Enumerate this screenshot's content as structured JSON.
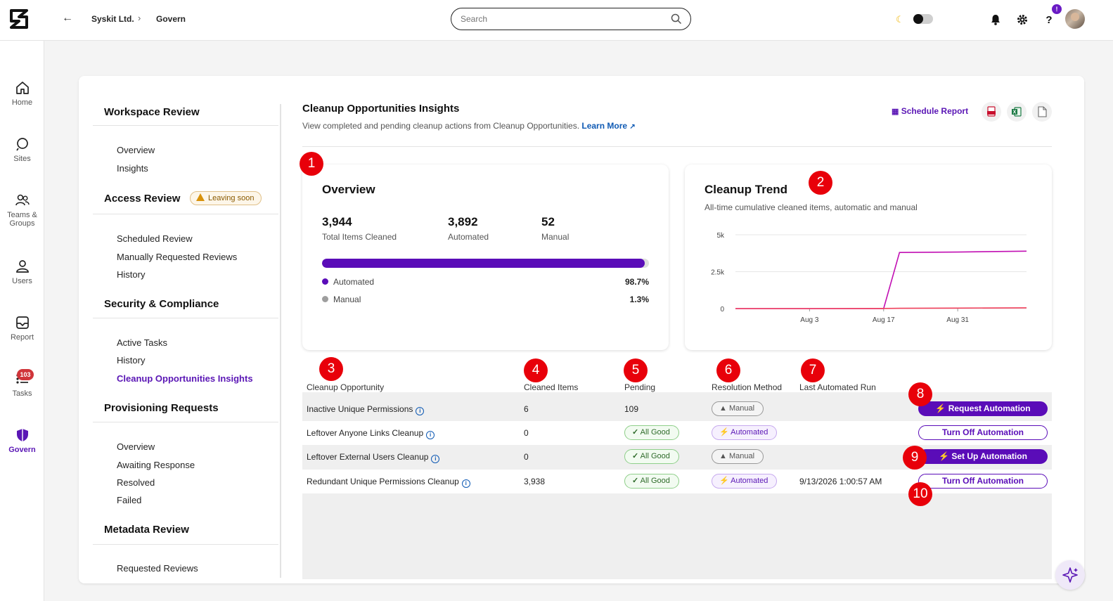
{
  "breadcrumb": {
    "org": "Syskit Ltd.",
    "current": "Govern"
  },
  "search": {
    "placeholder": "Search"
  },
  "help_badge": "!",
  "leftnav": [
    {
      "label": "Home",
      "icon": "home-icon"
    },
    {
      "label": "Sites",
      "icon": "sites-icon"
    },
    {
      "label": "Teams & Groups",
      "icon": "teams-icon"
    },
    {
      "label": "Users",
      "icon": "users-icon"
    },
    {
      "label": "Report",
      "icon": "report-icon"
    },
    {
      "label": "Tasks",
      "icon": "tasks-icon",
      "badge": "103"
    },
    {
      "label": "Govern",
      "icon": "shield-icon",
      "active": true
    }
  ],
  "subnav": {
    "workspace_review": {
      "title": "Workspace Review",
      "items": [
        "Overview",
        "Insights"
      ]
    },
    "access_review": {
      "title": "Access Review",
      "badge": "Leaving soon",
      "items": [
        "Scheduled Review",
        "Manually Requested Reviews",
        "History"
      ]
    },
    "security": {
      "title": "Security & Compliance",
      "items": [
        "Active Tasks",
        "History",
        "Cleanup Opportunities Insights"
      ]
    },
    "provisioning": {
      "title": "Provisioning Requests",
      "items": [
        "Overview",
        "Awaiting Response",
        "Resolved",
        "Failed"
      ]
    },
    "metadata": {
      "title": "Metadata Review",
      "items": [
        "Requested Reviews"
      ]
    }
  },
  "page": {
    "title": "Cleanup Opportunities Insights",
    "description": "View completed and pending cleanup actions from Cleanup Opportunities.",
    "learn_more": "Learn More",
    "schedule_report": "Schedule Report"
  },
  "overview": {
    "title": "Overview",
    "stats": [
      {
        "value": "3,944",
        "label": "Total Items Cleaned"
      },
      {
        "value": "3,892",
        "label": "Automated"
      },
      {
        "value": "52",
        "label": "Manual"
      }
    ],
    "automated_fraction": 0.987,
    "legend": [
      {
        "label": "Automated",
        "value": "98.7%",
        "color": "#5a0cb8"
      },
      {
        "label": "Manual",
        "value": "1.3%",
        "color": "#9e9e9e"
      }
    ]
  },
  "trend": {
    "title": "Cleanup Trend",
    "subtitle": "All-time cumulative cleaned items, automatic and manual"
  },
  "chart_data": {
    "type": "line",
    "x_ticks": [
      "Aug 3",
      "Aug 17",
      "Aug 31"
    ],
    "y_ticks": [
      "0",
      "2.5k",
      "5k"
    ],
    "ylim": [
      0,
      5000
    ],
    "x": [
      "Jul 20",
      "Aug 3",
      "Aug 17",
      "Aug 20",
      "Aug 31",
      "Sep 13"
    ],
    "series": [
      {
        "color": "#c10fb3",
        "values": [
          0,
          0,
          0,
          3800,
          3830,
          3892
        ]
      },
      {
        "color": "#f0415c",
        "values": [
          0,
          0,
          10,
          20,
          35,
          52
        ]
      }
    ],
    "grid": true
  },
  "table": {
    "headers": [
      "Cleanup Opportunity",
      "Cleaned Items",
      "Pending",
      "Resolution Method",
      "Last Automated Run"
    ],
    "rows": [
      {
        "name": "Inactive Unique Permissions",
        "cleaned": "6",
        "pending": "109",
        "pending_type": "text",
        "method": "Manual",
        "method_type": "manual",
        "last_run": "",
        "action": "Request Automation",
        "action_type": "primary"
      },
      {
        "name": "Leftover Anyone Links Cleanup",
        "cleaned": "0",
        "pending": "All Good",
        "pending_type": "good",
        "method": "Automated",
        "method_type": "auto",
        "last_run": "",
        "action": "Turn Off Automation",
        "action_type": "outline"
      },
      {
        "name": "Leftover External Users Cleanup",
        "cleaned": "0",
        "pending": "All Good",
        "pending_type": "good",
        "method": "Manual",
        "method_type": "manual",
        "last_run": "",
        "action": "Set Up Automation",
        "action_type": "primary"
      },
      {
        "name": "Redundant Unique Permissions Cleanup",
        "cleaned": "3,938",
        "pending": "All Good",
        "pending_type": "good",
        "method": "Automated",
        "method_type": "auto",
        "last_run": "9/13/2026 1:00:57 AM",
        "action": "Turn Off Automation",
        "action_type": "outline"
      }
    ]
  },
  "markers": [
    "1",
    "2",
    "3",
    "4",
    "5",
    "6",
    "7",
    "8",
    "9",
    "10"
  ]
}
